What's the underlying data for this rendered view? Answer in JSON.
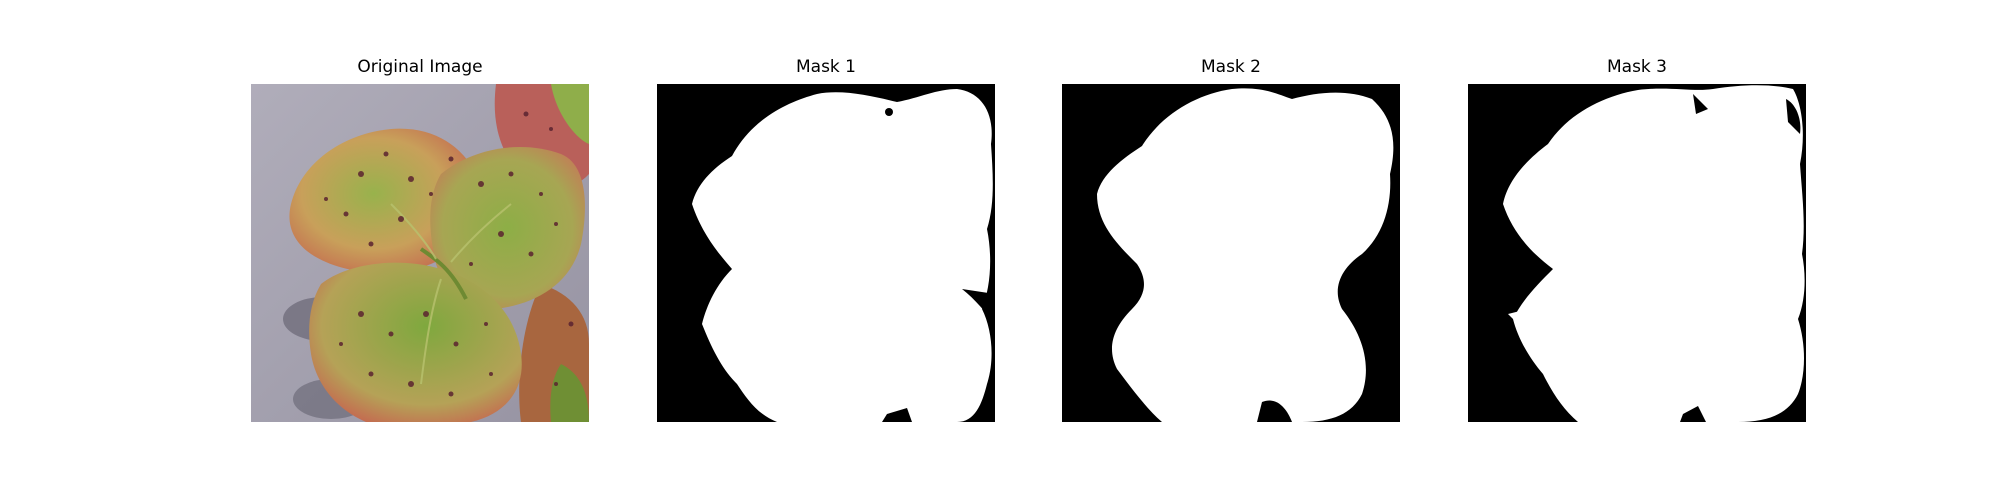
{
  "figure": {
    "panels": [
      {
        "title": "Original Image",
        "kind": "photo"
      },
      {
        "title": "Mask 1",
        "kind": "mask"
      },
      {
        "title": "Mask 2",
        "kind": "mask"
      },
      {
        "title": "Mask 3",
        "kind": "mask"
      }
    ]
  },
  "colors": {
    "background": "#ffffff",
    "mask_foreground": "#ffffff",
    "mask_background": "#000000",
    "ground": "#a6a3b0",
    "leaf_red": "#c9614f",
    "leaf_green": "#8fb04a",
    "spot": "#5b2330"
  }
}
